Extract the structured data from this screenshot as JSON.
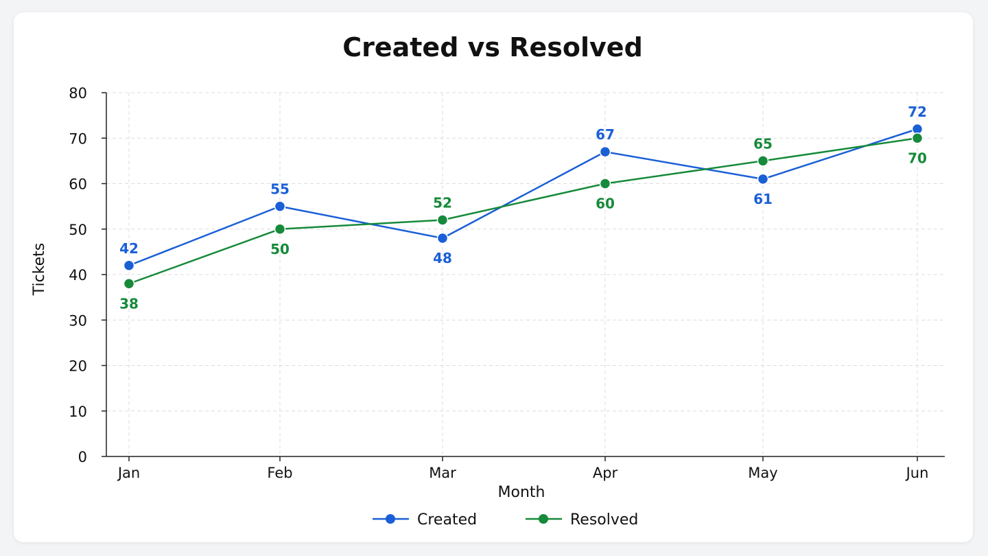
{
  "chart_data": {
    "type": "line",
    "title": "Created vs Resolved",
    "xlabel": "Month",
    "ylabel": "Tickets",
    "categories": [
      "Jan",
      "Feb",
      "Mar",
      "Apr",
      "May",
      "Jun"
    ],
    "ylim": [
      0,
      80
    ],
    "yticks": [
      0,
      10,
      20,
      30,
      40,
      50,
      60,
      70,
      80
    ],
    "grid": true,
    "legend": "bottom-center",
    "series": [
      {
        "name": "Created",
        "color": "#1a5fd6",
        "values": [
          42,
          55,
          48,
          67,
          61,
          72
        ]
      },
      {
        "name": "Resolved",
        "color": "#168a3a",
        "values": [
          38,
          50,
          52,
          60,
          65,
          70
        ]
      }
    ]
  }
}
